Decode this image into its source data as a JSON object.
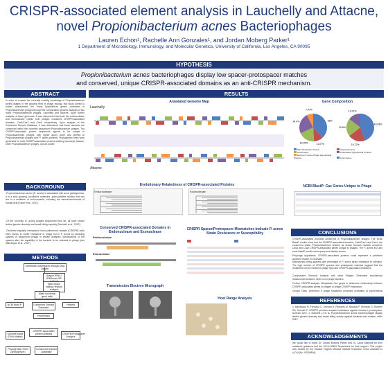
{
  "header": {
    "title_line1": "CRISPR-associated element analysis in Lauchelly and Attacne,",
    "title_line2_pre": "novel ",
    "title_line2_italic": "Propionibacterium acnes",
    "title_line2_post": " Bacteriophages",
    "authors": "Lauren Echon¹, Rachelle Ann Gonzales¹, and Jordan Moberg Parker¹",
    "affiliation": "1 Department of Microbiology, Immunology, and Molecular Genetics, University of California, Los Angeles, CA 90095"
  },
  "hypothesis": {
    "label": "HYPOTHESIS",
    "line1_italic": "Propionibacterium acnes",
    "line1_rest": " bacteriophages display low spacer-protospacer matches",
    "line2": "and conserved, unique CRISPR-associated domains as an anti-CRISPR mechanism."
  },
  "sections": {
    "abstract": "ABSTRACT",
    "background": "BACKGROUND",
    "methods": "METHODS",
    "results": "RESULTS",
    "conclusions": "CONCLUSIONS",
    "references": "REFERENCES",
    "acknowledgements": "ACKNOWLEDGEMENTS"
  },
  "abstract_text": "In order to expand the currently existing knowledge of Propionibacterium acnes phages in the growing field of phage biology, this study aimed to further characterize the many hypothetical genes contained in Propionibacterium phages through the comparative genomic analysis of two novel Propionibacterium phages, Lauchelly and Attacne. Upon further analysis of these genomes, it was discovered that both the endonuclease and exonuclease (within both phages contained CRISPR-associated domains, Cas4/Cas1 and Cas4, respectively. Upon analysis of the Conserved Domain Database, it was determined that these domains are conserved within the currently sequenced Propionibacterium phages. The CRISPR-associated protein sequences appear to be unique to Propionibacterium phages, with higher query cover and identity to Propionibacterium phages over P. acnes proteins. Phylogenetic trees were generated for both CRISPR-associated proteins utilizing Lauchelly, Attacne, other Propionibacterium phages, and an outlier.",
  "background_items": [
    "-Propionibacterium acnes (P. acnes) is associated with acne pathogenesis. It is a slow growing, facultative anaerobe, gram-positive bacillus that can live in a multitude of environments, including the microenvironments of human skin (Fame et al., 2007).",
    "-Of the currently 47 acnes phages sequenced thus far, all have shown limited genetic diversity and broad killing capacity (Marinelli et al., 2012).",
    "-Clustered regularly interspaced short palindromic repeats (CRISPR) have been shown to confer resistance to phage but in P. acnes by obtaining spacers of sequenced phage in certain analyses. Modifications of the spacers alter the capability of the bacteria to be resistant to phage lysis (Barrangou et al., 2007)."
  ],
  "methods": {
    "top": "GeneMark Submission through DNA Master",
    "nodes": [
      "Aragon tRNA / tRNAscan-SE analysis",
      "Start codon calling / feature analysis",
      "Make functional gene calls",
      "NCBI Blast P",
      "Conserved Domain Database",
      "Phamerator",
      "Genome Maps (DNA Master)",
      "HHpred",
      "CRISPR-associated protein analysis",
      "Phylogenetic Trees (phylogeny.fr)",
      "Conserved Domain Database",
      "CRISPR/Protospacer Analysis"
    ]
  },
  "results": {
    "genome_map_title": "Annotated Genome Map",
    "gene_composition_title": "Gene Composition",
    "lauchelly_label": "Lauchelly",
    "attacne_label": "Attacne",
    "evolutionary_title": "Evolutionary Relatedness of CRISPR-associated Proteins",
    "endonuclease_label": "Endonuclease",
    "exonuclease_label": "Exonuclease",
    "ncbi_title": "NCBI BlastP: Cas Genes Unique to Phage",
    "conserved_title": "Conserved CRISPR-associated Domains in Endonuclease and Exonuclease",
    "protospacer_title": "CRISPR Spacer/Protospacer Mismatches Indicate P. acnes Strain Resistance or Susceptibility",
    "tem_title": "Transmission Electron Micrograph",
    "host_range_title": "Host Range Analysis",
    "pie_legend": [
      "DNA Replication Protein",
      "Capsid Proteins",
      "Tail Proteins",
      "Unidentified Hypothetical Proteins",
      "Enzyme P acnes Phage Hypothetical Proteins",
      "Lysis Genes"
    ],
    "pie1": [
      "38%",
      "11.07%",
      "19.05%",
      "24.4%",
      "7.47%"
    ],
    "pie2": [
      "43.48%",
      "19.72%",
      "20.5%",
      "14.21%"
    ]
  },
  "conclusions": [
    "CRISPR-associated domains conserved in Propionibacterium phages: The NCBI BlastP results show that the CRISPR-associated domains, Cas4/Cas1 and Cas4, are conserved within Propionibacterium phages as shown through multiple sequence alignments.",
    "Cas4 and Cas4 CRISPR-associated genes unique to phages: The P. acnes exo and endo BlastP results show query and identity scores.",
    "Prophage hypothesis: CRISPR-associated proteins could represent a predicted acquired protein in prophage.",
    "Mismatches hitting spacers with phenotype in P. acnes strain resistance to infection: The high number of CRISPR spacers and protospacer matches suggest that the resistance can be related to phage lysis and CRISPR-associated resistance."
  ],
  "future": [
    "Comparative Genomic Analysis with other Phages: Determine evolutionary relationships between other novel phage clusters.",
    "Further CRISPR analysis: Manipulate Cas genes to determine relationship between CRISPR-associated genes in phages to phage CRISPR resistance.",
    "Clinical Trials: Determine if phage resistance predicted correlates to experimental results."
  ],
  "references_text": "1. Barrangou R, Fremaux C, Deveau H, Richards M, Boyaval P, Moineau S, Romero DA, Horvath P. CRISPR provides acquired resistance against viruses in prokaryotes. Science 2007. 2. Marinelli LJ et al. Propionibacterium acnes bacteriophages display limited genetic diversity and broad killing activity against bacterial skin isolates. mBio 2012.",
  "acknowledgements_text": "We would like to thank Dr. Jordan Moberg Parker and Dr. Laura Marinelli for their academic guidance and the UCLA MIMG Department for their support. This project was funded by the Howard Hughes Medical Institute Education Grant awarded to UCLA (No. 52008804).",
  "colors": {
    "navy": "#1e3a78",
    "pie": [
      "#4f7fc0",
      "#c0504d",
      "#9bbb59",
      "#8064a2",
      "#f79646"
    ]
  }
}
